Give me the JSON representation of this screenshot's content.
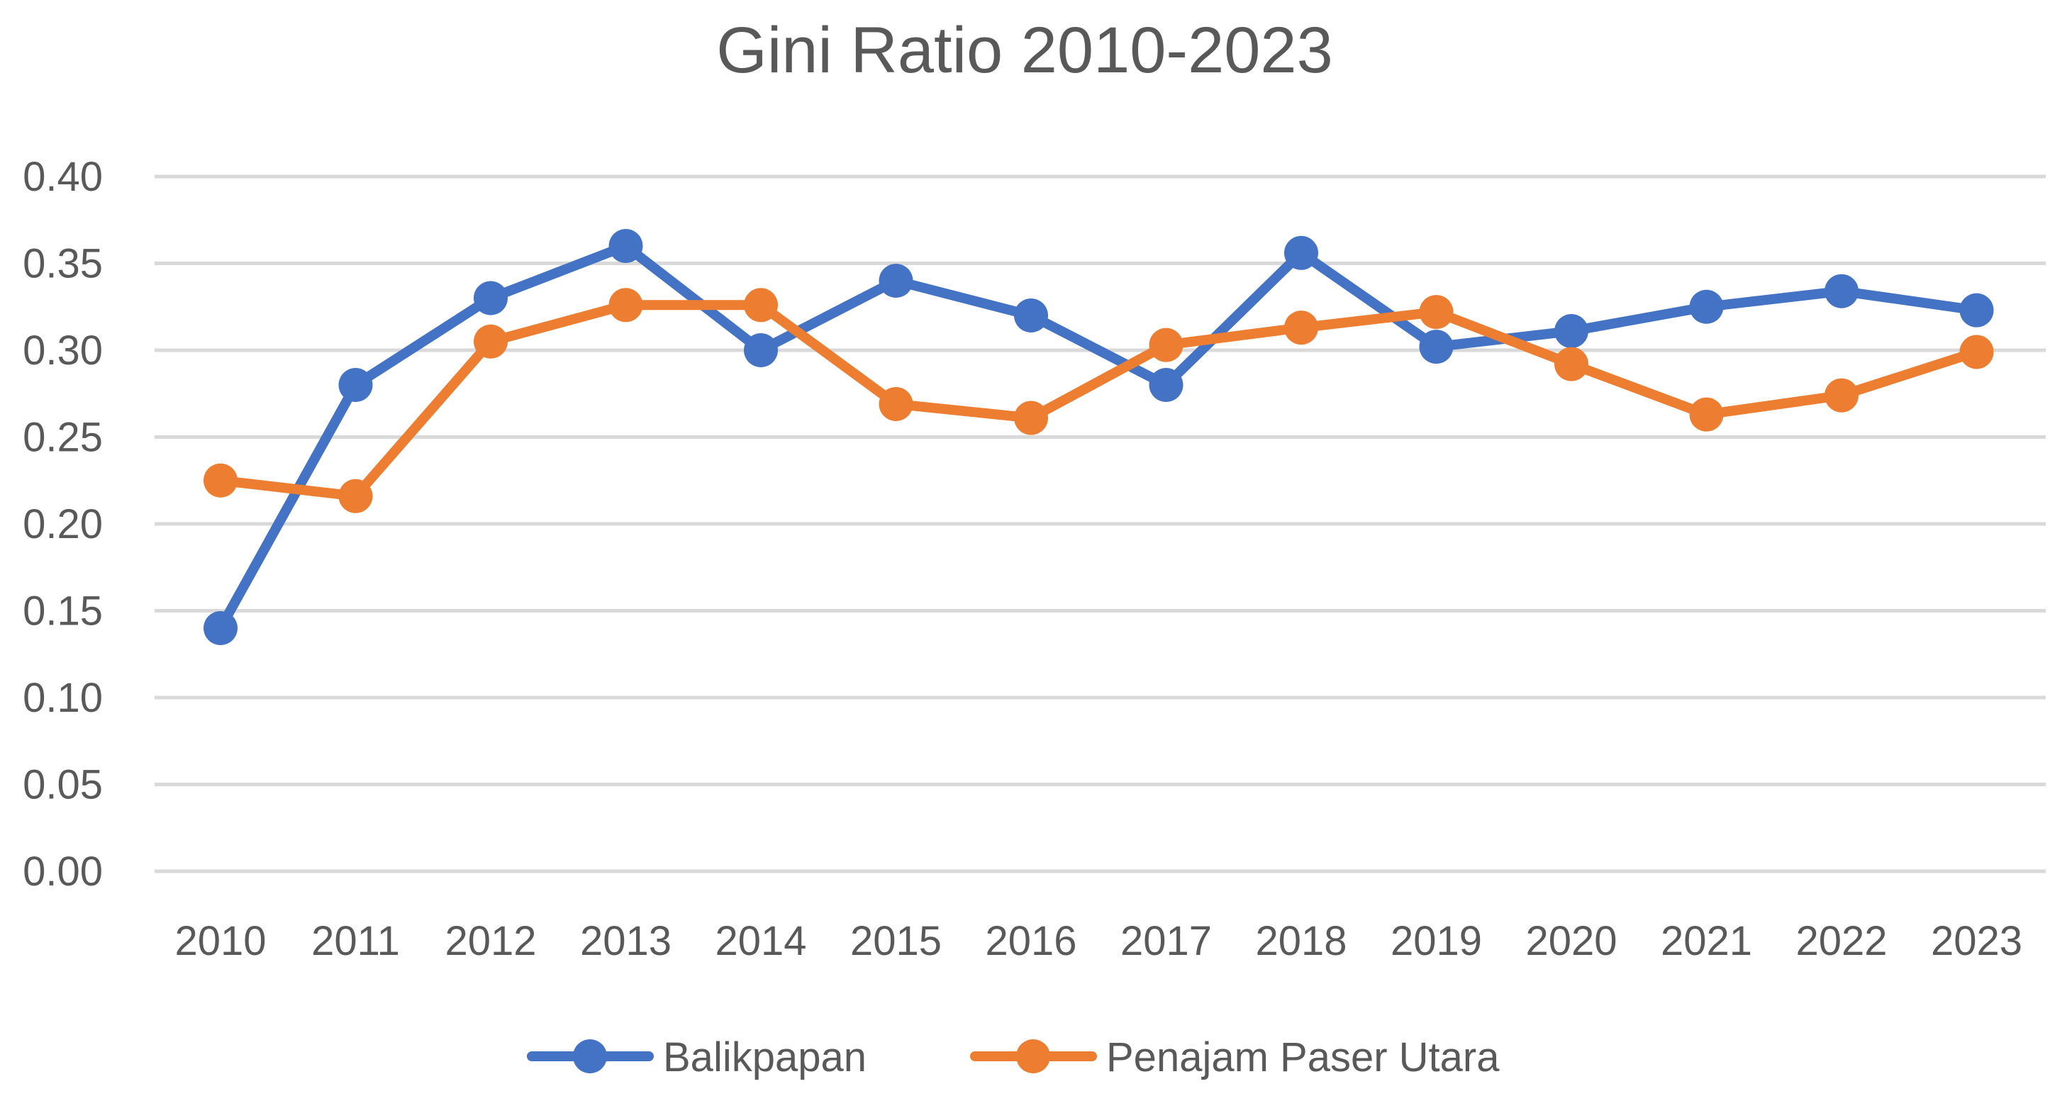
{
  "chart_data": {
    "type": "line",
    "title": "Gini Ratio 2010-2023",
    "xlabel": "",
    "ylabel": "",
    "categories": [
      "2010",
      "2011",
      "2012",
      "2013",
      "2014",
      "2015",
      "2016",
      "2017",
      "2018",
      "2019",
      "2020",
      "2021",
      "2022",
      "2023"
    ],
    "ylim": [
      0,
      0.4
    ],
    "yticks": [
      "0.00",
      "0.05",
      "0.10",
      "0.15",
      "0.20",
      "0.25",
      "0.30",
      "0.35",
      "0.40"
    ],
    "grid": true,
    "legend_position": "bottom",
    "series": [
      {
        "name": "Balikpapan",
        "color": "#4472C4",
        "values": [
          0.14,
          0.28,
          0.33,
          0.36,
          0.3,
          0.34,
          0.32,
          0.28,
          0.356,
          0.302,
          0.311,
          0.325,
          0.334,
          0.323
        ]
      },
      {
        "name": "Penajam Paser Utara",
        "color": "#ED7D31",
        "values": [
          0.225,
          0.216,
          0.305,
          0.326,
          0.326,
          0.269,
          0.261,
          0.303,
          0.313,
          0.322,
          0.292,
          0.263,
          0.274,
          0.299
        ]
      }
    ]
  }
}
